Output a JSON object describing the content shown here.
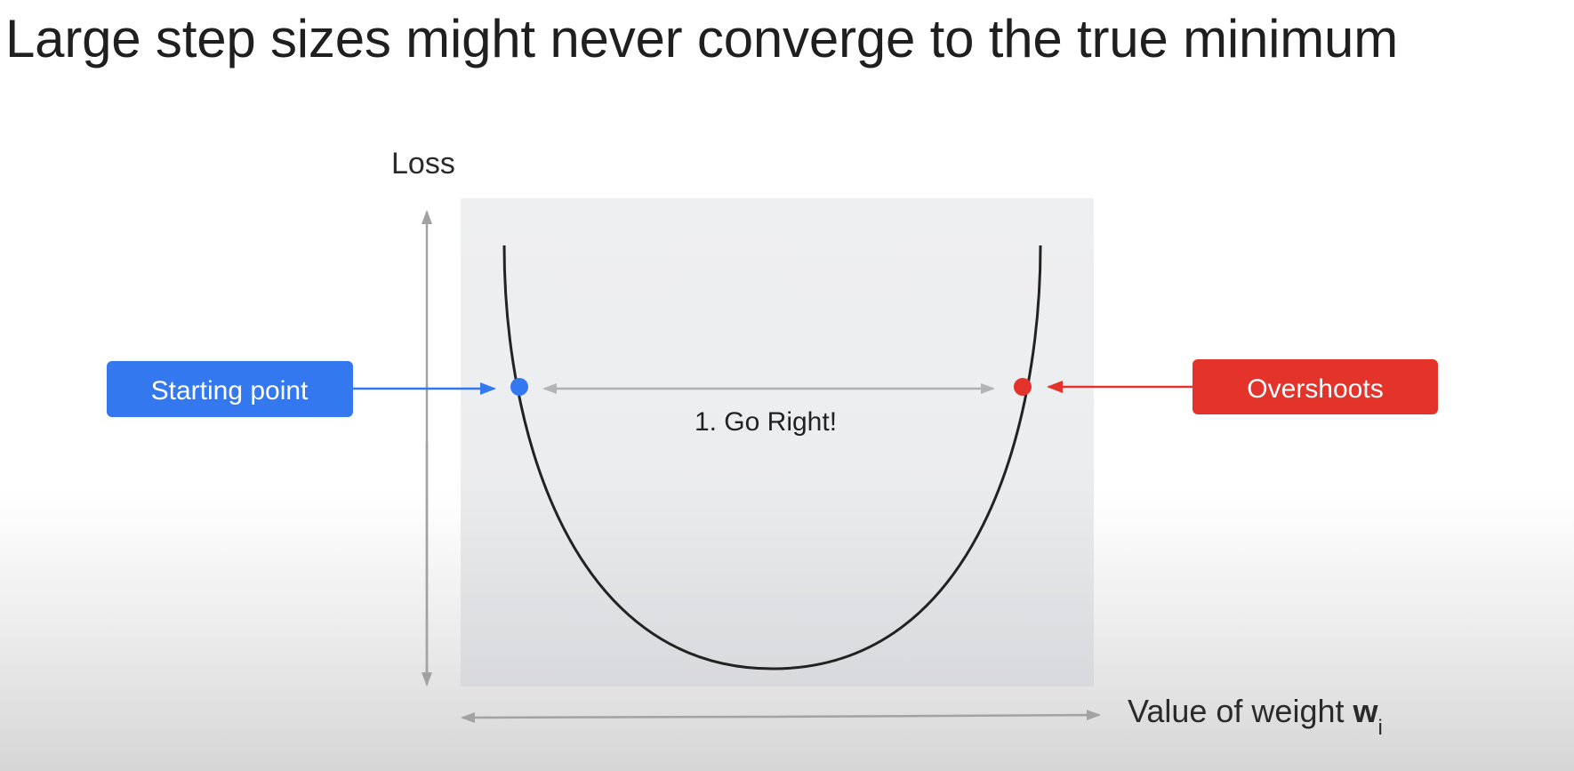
{
  "title": "Large step sizes might never converge to the true minimum",
  "axes": {
    "y_label": "Loss",
    "x_label": "Value of weight",
    "x_label_symbol": "w",
    "x_label_subscript": "i"
  },
  "callouts": {
    "start": {
      "label": "Starting point",
      "color": "#3478f0"
    },
    "overshoot": {
      "label": "Overshoots",
      "color": "#e4332b"
    }
  },
  "step_annotation": "1. Go Right!",
  "colors": {
    "axis": "#a2a2a2",
    "curve": "#222222",
    "plot_background_top": "#eeeff1",
    "plot_background_bottom": "#d8d9dc",
    "step_arrow": "#b0b0b0"
  }
}
